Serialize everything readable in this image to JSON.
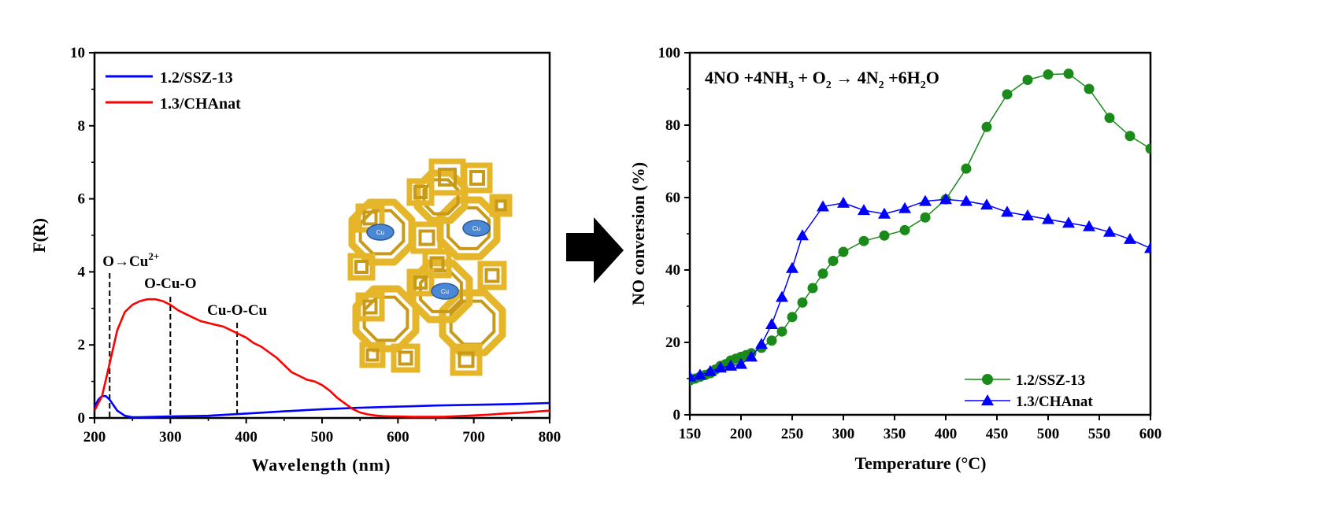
{
  "chart_data": [
    {
      "type": "line",
      "xlabel": "Wavelength (nm)",
      "ylabel": "F(R)",
      "xlim": [
        200,
        800
      ],
      "ylim": [
        0,
        10
      ],
      "xticks": [
        "200",
        "300",
        "400",
        "500",
        "600",
        "700",
        "800"
      ],
      "yticks": [
        "0",
        "2",
        "4",
        "6",
        "8",
        "10"
      ],
      "legend_placement": "top-left",
      "colors": {
        "blue": "#0000ff",
        "red": "#ff0000"
      },
      "series": [
        {
          "name": "1.2/SSZ-13",
          "color": "#0000ff",
          "x": [
            200,
            205,
            210,
            215,
            220,
            225,
            230,
            240,
            250,
            260,
            300,
            350,
            400,
            450,
            500,
            550,
            600,
            650,
            700,
            750,
            800
          ],
          "y": [
            0.3,
            0.5,
            0.6,
            0.6,
            0.5,
            0.35,
            0.2,
            0.06,
            0.02,
            0.02,
            0.04,
            0.06,
            0.12,
            0.18,
            0.24,
            0.28,
            0.31,
            0.34,
            0.36,
            0.38,
            0.41
          ]
        },
        {
          "name": "1.3/CHAnat",
          "color": "#ff0000",
          "x": [
            200,
            210,
            220,
            230,
            240,
            250,
            260,
            270,
            280,
            290,
            300,
            310,
            320,
            330,
            340,
            350,
            360,
            370,
            380,
            390,
            400,
            410,
            420,
            430,
            440,
            450,
            460,
            470,
            480,
            490,
            500,
            510,
            520,
            530,
            540,
            550,
            560,
            570,
            580,
            590,
            600,
            620,
            640,
            660,
            680,
            700,
            720,
            740,
            760,
            780,
            800
          ],
          "y": [
            0.2,
            0.6,
            1.5,
            2.4,
            2.9,
            3.1,
            3.2,
            3.25,
            3.25,
            3.2,
            3.1,
            2.95,
            2.85,
            2.75,
            2.65,
            2.6,
            2.55,
            2.5,
            2.4,
            2.3,
            2.2,
            2.05,
            1.95,
            1.8,
            1.65,
            1.45,
            1.25,
            1.15,
            1.05,
            1.0,
            0.9,
            0.75,
            0.55,
            0.4,
            0.25,
            0.15,
            0.1,
            0.07,
            0.05,
            0.04,
            0.04,
            0.03,
            0.03,
            0.03,
            0.05,
            0.07,
            0.09,
            0.12,
            0.14,
            0.17,
            0.2
          ]
        }
      ],
      "annotations": [
        {
          "label": "O→Cu",
          "sup": "2+",
          "x": 220
        },
        {
          "label": "O-Cu-O",
          "x": 300
        },
        {
          "label": "Cu-O-Cu",
          "x": 388
        }
      ],
      "inset": {
        "markers": [
          "Cu",
          "Cu",
          "Cu"
        ],
        "framework_color": "#e5b62a",
        "marker_color": "#4a87d4"
      }
    },
    {
      "type": "line",
      "xlabel": "Temperature (°C)",
      "ylabel": "NO conversion (%)",
      "xlim": [
        150,
        600
      ],
      "ylim": [
        0,
        100
      ],
      "xticks": [
        "150",
        "200",
        "250",
        "300",
        "350",
        "400",
        "450",
        "500",
        "550",
        "600"
      ],
      "yticks": [
        "0",
        "20",
        "40",
        "60",
        "80",
        "100"
      ],
      "legend_placement": "bottom-right",
      "colors": {
        "green": "#1a8a1a",
        "blue": "#0000ff"
      },
      "equation": {
        "parts": [
          "4NO +4NH",
          "3",
          " + O",
          "2",
          " →  4N",
          "2",
          " +6H",
          "2",
          "O"
        ]
      },
      "series": [
        {
          "name": "1.2/SSZ-13",
          "color": "#1a8a1a",
          "marker": "circle",
          "x": [
            150,
            155,
            160,
            165,
            170,
            175,
            180,
            185,
            190,
            195,
            200,
            205,
            210,
            220,
            230,
            240,
            250,
            260,
            270,
            280,
            290,
            300,
            320,
            340,
            360,
            380,
            400,
            420,
            440,
            460,
            480,
            500,
            520,
            540,
            560,
            580,
            600
          ],
          "y": [
            9.5,
            10,
            10.5,
            11,
            11.5,
            12.5,
            13.5,
            14,
            15,
            15.5,
            16,
            16.5,
            17,
            18.5,
            20.5,
            23,
            27,
            31,
            35,
            39,
            42.5,
            45,
            48,
            49.5,
            51,
            54.5,
            59.5,
            68,
            79.5,
            88.5,
            92.5,
            94,
            94.2,
            90,
            82,
            77,
            73.5
          ]
        },
        {
          "name": "1.3/CHAnat",
          "color": "#0000ff",
          "marker": "triangle",
          "x": [
            150,
            160,
            170,
            180,
            190,
            200,
            210,
            220,
            230,
            240,
            250,
            260,
            280,
            300,
            320,
            340,
            360,
            380,
            400,
            420,
            440,
            460,
            480,
            500,
            520,
            540,
            560,
            580,
            600
          ],
          "y": [
            10.5,
            11,
            12,
            13,
            13.5,
            14,
            16,
            19.5,
            25,
            32.5,
            40.5,
            49.5,
            57.5,
            58.5,
            56.5,
            55.5,
            57,
            59,
            59.5,
            59,
            58,
            56,
            55,
            54,
            53,
            52,
            50.5,
            48.5,
            46
          ]
        }
      ]
    }
  ],
  "arrow": {
    "direction": "right",
    "color": "#000000"
  }
}
